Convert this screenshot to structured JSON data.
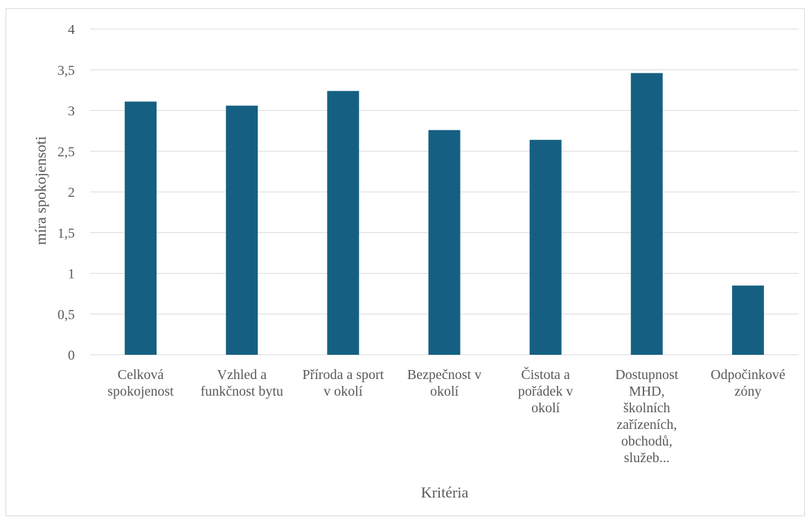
{
  "chart_data": {
    "type": "bar",
    "title": "",
    "xlabel": "Kritéria",
    "ylabel": "míra spokojensoti",
    "ylim": [
      0,
      4
    ],
    "yticks": [
      "0",
      "0,5",
      "1",
      "1,5",
      "2",
      "2,5",
      "3",
      "3,5",
      "4"
    ],
    "ytick_values": [
      0,
      0.5,
      1,
      1.5,
      2,
      2.5,
      3,
      3.5,
      4
    ],
    "grid": true,
    "legend": "none",
    "bar_color": "#156082",
    "categories": [
      [
        "Celková",
        "spokojenost"
      ],
      [
        "Vzhled a",
        "funkčnost bytu"
      ],
      [
        "Příroda a sport",
        "v okolí"
      ],
      [
        "Bezpečnost v",
        "okolí"
      ],
      [
        "Čistota a",
        "pořádek v",
        "okolí"
      ],
      [
        "Dostupnost",
        "MHD,",
        "školních",
        "zařízeních,",
        "obchodů,",
        "služeb..."
      ],
      [
        "Odpočinkové",
        "zóny"
      ]
    ],
    "values": [
      3.11,
      3.06,
      3.24,
      2.76,
      2.64,
      3.46,
      0.85
    ]
  }
}
